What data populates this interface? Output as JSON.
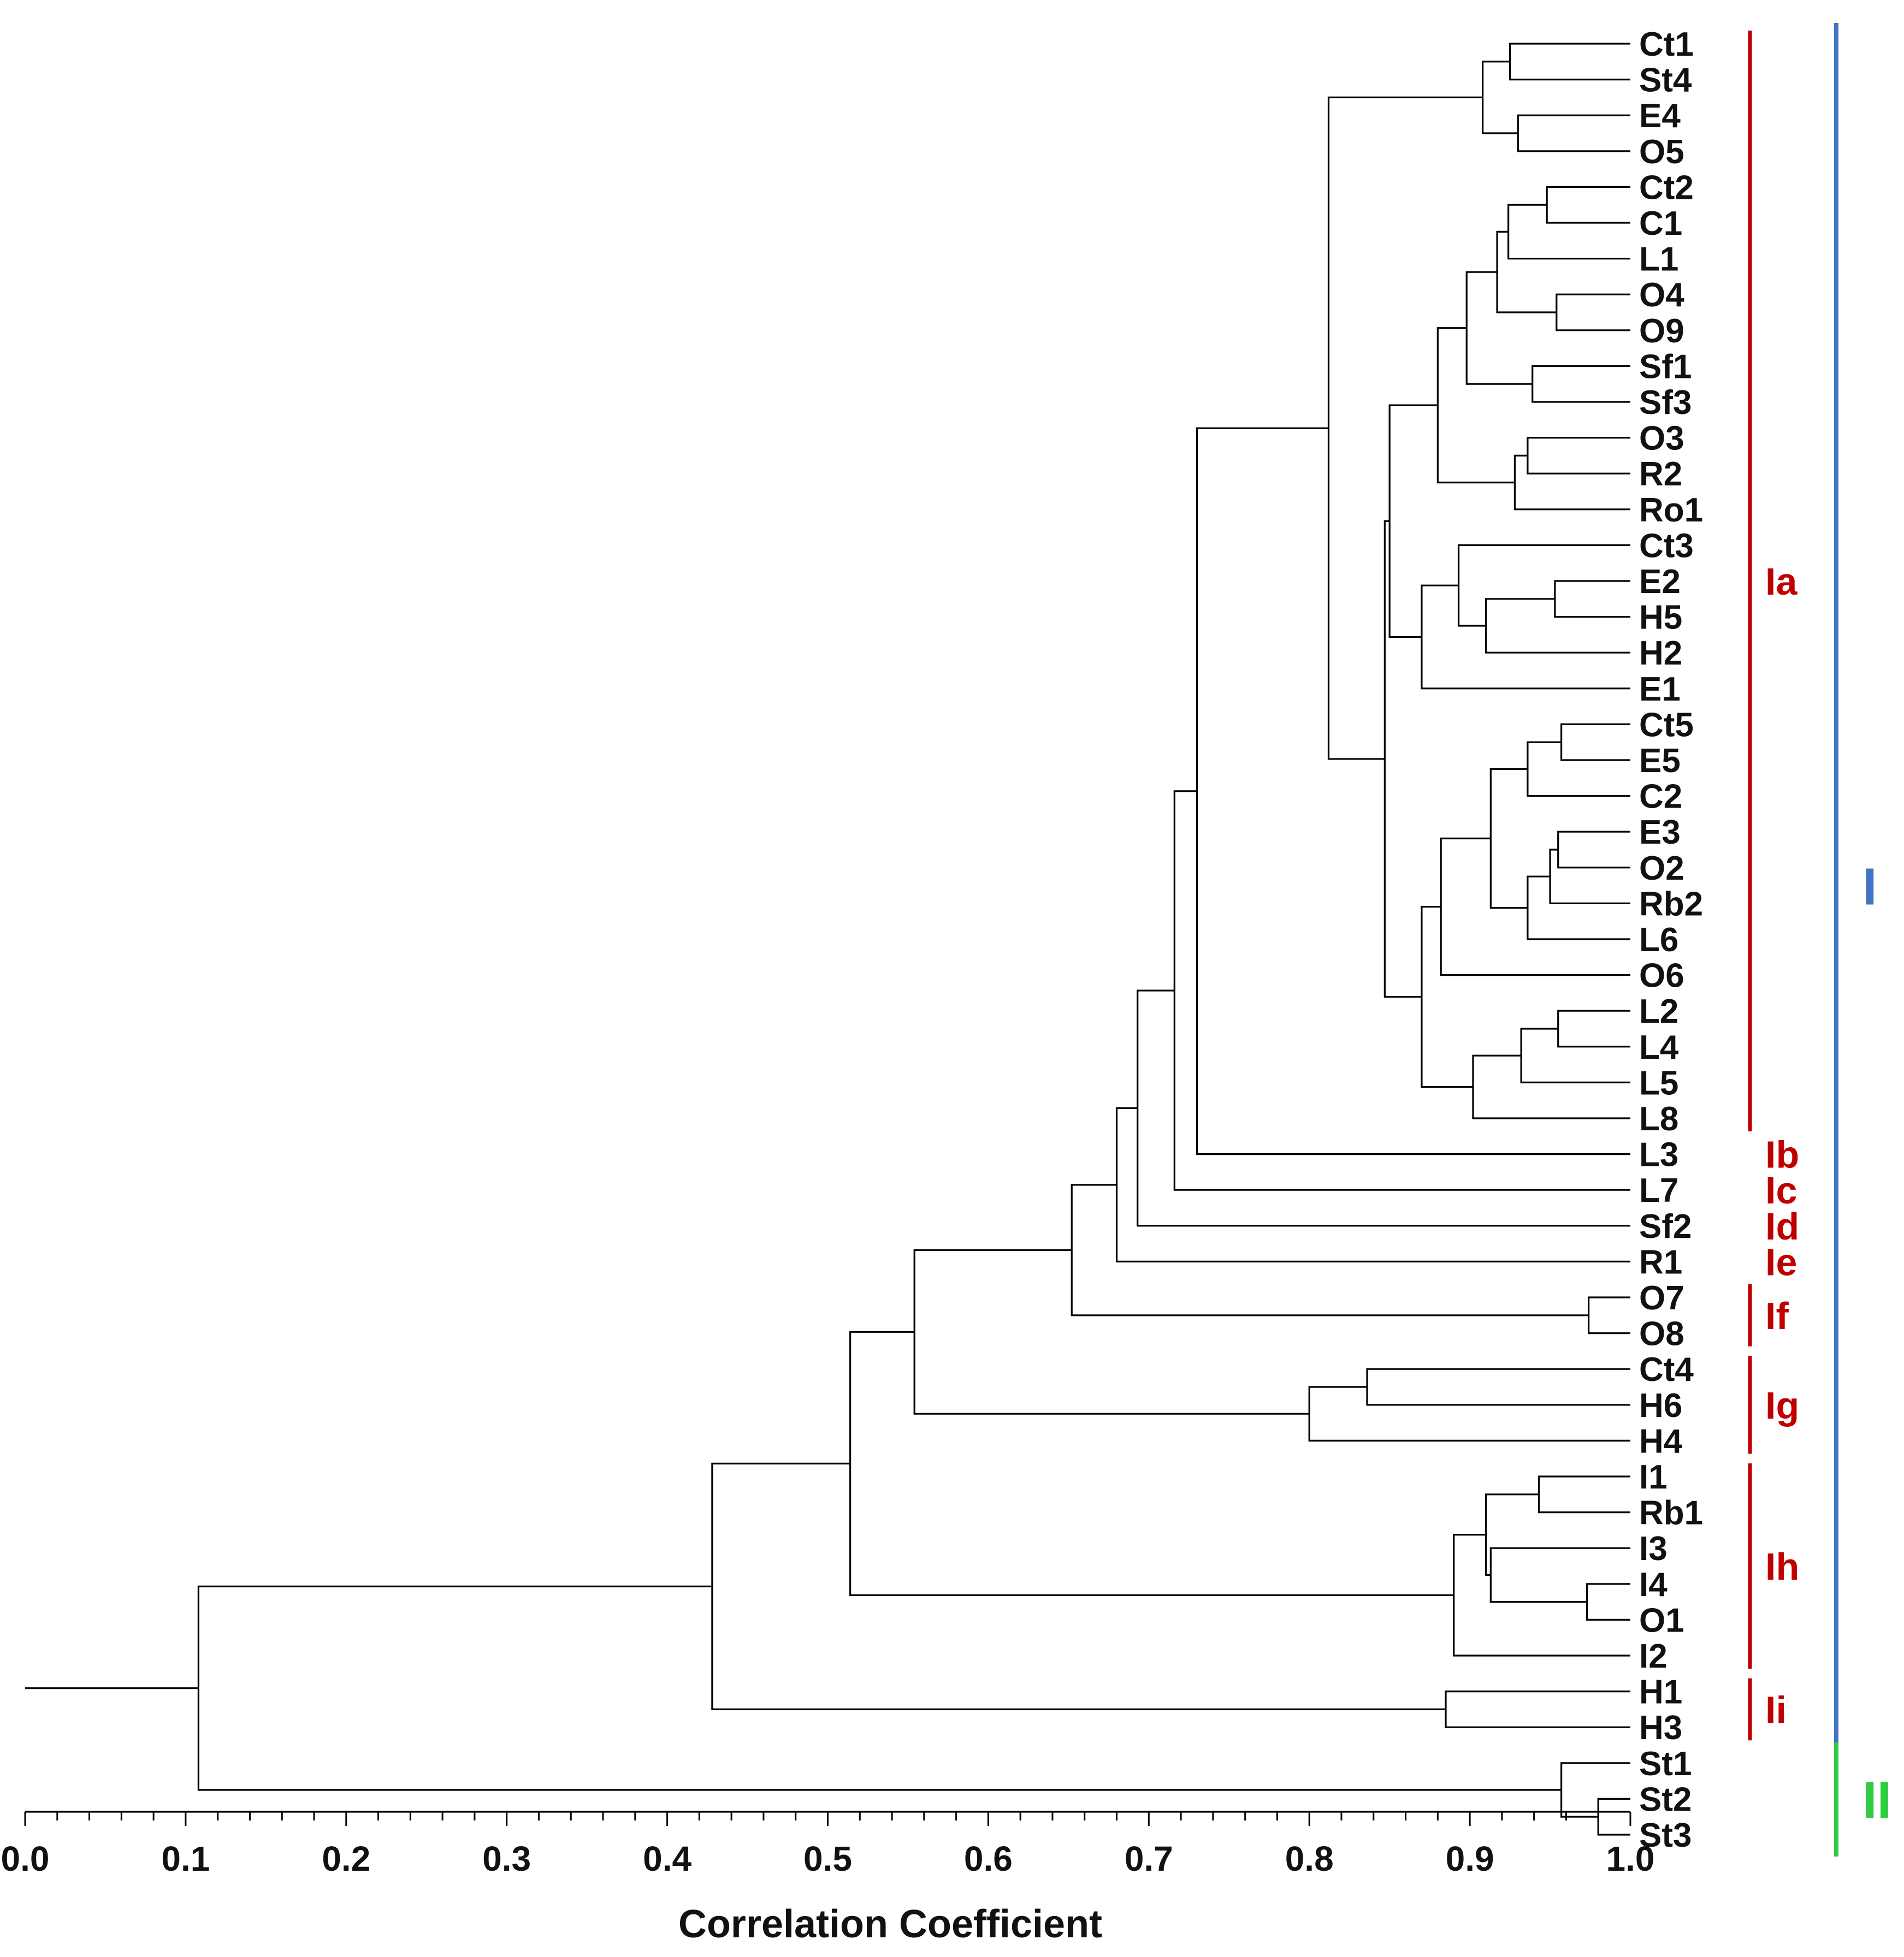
{
  "chart_data": {
    "type": "dendrogram",
    "orientation": "horizontal",
    "xlabel": "Correlation Coefficient",
    "xlim": [
      0.0,
      1.0
    ],
    "x_ticks": [
      "0.0",
      "0.1",
      "0.2",
      "0.3",
      "0.4",
      "0.5",
      "0.6",
      "0.7",
      "0.8",
      "0.9",
      "1.0"
    ],
    "leaves": [
      "Ct1",
      "St4",
      "E4",
      "O5",
      "Ct2",
      "C1",
      "L1",
      "O4",
      "O9",
      "Sf1",
      "Sf3",
      "O3",
      "R2",
      "Ro1",
      "Ct3",
      "E2",
      "H5",
      "H2",
      "E1",
      "Ct5",
      "E5",
      "C2",
      "E3",
      "O2",
      "Rb2",
      "L6",
      "O6",
      "L2",
      "L4",
      "L5",
      "L8",
      "L3",
      "L7",
      "Sf2",
      "R1",
      "O7",
      "O8",
      "Ct4",
      "H6",
      "H4",
      "I1",
      "Rb1",
      "I3",
      "I4",
      "O1",
      "I2",
      "H1",
      "H3",
      "St1",
      "St2",
      "St3"
    ],
    "merges": [
      {
        "a": "Ct1",
        "b": "St4",
        "r": 0.925
      },
      {
        "a": "E4",
        "b": "O5",
        "r": 0.93
      },
      {
        "a": 0,
        "b": 1,
        "r": 0.908
      },
      {
        "a": "Ct2",
        "b": "C1",
        "r": 0.948
      },
      {
        "a": 3,
        "b": "L1",
        "r": 0.924
      },
      {
        "a": "O4",
        "b": "O9",
        "r": 0.954
      },
      {
        "a": 4,
        "b": 5,
        "r": 0.917
      },
      {
        "a": "Sf1",
        "b": "Sf3",
        "r": 0.939
      },
      {
        "a": 6,
        "b": 7,
        "r": 0.898
      },
      {
        "a": "O3",
        "b": "R2",
        "r": 0.936
      },
      {
        "a": 9,
        "b": "Ro1",
        "r": 0.928
      },
      {
        "a": 8,
        "b": 10,
        "r": 0.88
      },
      {
        "a": "E2",
        "b": "H5",
        "r": 0.953
      },
      {
        "a": 12,
        "b": "H2",
        "r": 0.91
      },
      {
        "a": "Ct3",
        "b": 13,
        "r": 0.893
      },
      {
        "a": 14,
        "b": "E1",
        "r": 0.87
      },
      {
        "a": 11,
        "b": 15,
        "r": 0.85
      },
      {
        "a": "Ct5",
        "b": "E5",
        "r": 0.957
      },
      {
        "a": 17,
        "b": "C2",
        "r": 0.936
      },
      {
        "a": "E3",
        "b": "O2",
        "r": 0.955
      },
      {
        "a": 19,
        "b": "Rb2",
        "r": 0.95
      },
      {
        "a": 20,
        "b": "L6",
        "r": 0.936
      },
      {
        "a": 18,
        "b": 21,
        "r": 0.913
      },
      {
        "a": 22,
        "b": "O6",
        "r": 0.882
      },
      {
        "a": "L2",
        "b": "L4",
        "r": 0.955
      },
      {
        "a": 24,
        "b": "L5",
        "r": 0.932
      },
      {
        "a": 25,
        "b": "L8",
        "r": 0.902
      },
      {
        "a": 23,
        "b": 26,
        "r": 0.87
      },
      {
        "a": 16,
        "b": 27,
        "r": 0.847
      },
      {
        "a": 2,
        "b": 28,
        "r": 0.812
      },
      {
        "a": 29,
        "b": "L3",
        "r": 0.73
      },
      {
        "a": 30,
        "b": "L7",
        "r": 0.716
      },
      {
        "a": 31,
        "b": "Sf2",
        "r": 0.693
      },
      {
        "a": 32,
        "b": "R1",
        "r": 0.68
      },
      {
        "a": "O7",
        "b": "O8",
        "r": 0.974
      },
      {
        "a": 33,
        "b": 34,
        "r": 0.652
      },
      {
        "a": "Ct4",
        "b": "H6",
        "r": 0.836
      },
      {
        "a": 36,
        "b": "H4",
        "r": 0.8
      },
      {
        "a": 35,
        "b": 37,
        "r": 0.554
      },
      {
        "a": "I1",
        "b": "Rb1",
        "r": 0.943
      },
      {
        "a": "I4",
        "b": "O1",
        "r": 0.973
      },
      {
        "a": "I3",
        "b": 40,
        "r": 0.913
      },
      {
        "a": 39,
        "b": 41,
        "r": 0.91
      },
      {
        "a": 42,
        "b": "I2",
        "r": 0.89
      },
      {
        "a": 38,
        "b": 43,
        "r": 0.514
      },
      {
        "a": "H1",
        "b": "H3",
        "r": 0.885
      },
      {
        "a": 44,
        "b": 45,
        "r": 0.428
      },
      {
        "a": "St2",
        "b": "St3",
        "r": 0.98
      },
      {
        "a": "St1",
        "b": 47,
        "r": 0.957
      },
      {
        "a": 46,
        "b": 48,
        "r": 0.108
      }
    ],
    "root_stub_to": 0.0,
    "subgroups": [
      {
        "label": "Ia",
        "from": "Ct1",
        "to": "L8",
        "color": "#c00000"
      },
      {
        "label": "Ib",
        "from": "L3",
        "to": "L3",
        "color": "#c00000"
      },
      {
        "label": "Ic",
        "from": "L7",
        "to": "L7",
        "color": "#c00000"
      },
      {
        "label": "Id",
        "from": "Sf2",
        "to": "Sf2",
        "color": "#c00000"
      },
      {
        "label": "Ie",
        "from": "R1",
        "to": "R1",
        "color": "#c00000"
      },
      {
        "label": "If",
        "from": "O7",
        "to": "O8",
        "color": "#c00000"
      },
      {
        "label": "Ig",
        "from": "Ct4",
        "to": "H4",
        "color": "#c00000"
      },
      {
        "label": "Ih",
        "from": "I1",
        "to": "I2",
        "color": "#c00000"
      },
      {
        "label": "Ii",
        "from": "H1",
        "to": "H3",
        "color": "#c00000"
      }
    ],
    "clusters": [
      {
        "label": "I",
        "from": "Ct1",
        "to": "H3",
        "color": "#4472c4"
      },
      {
        "label": "II",
        "from": "St1",
        "to": "St3",
        "color": "#2ecc40"
      }
    ]
  }
}
